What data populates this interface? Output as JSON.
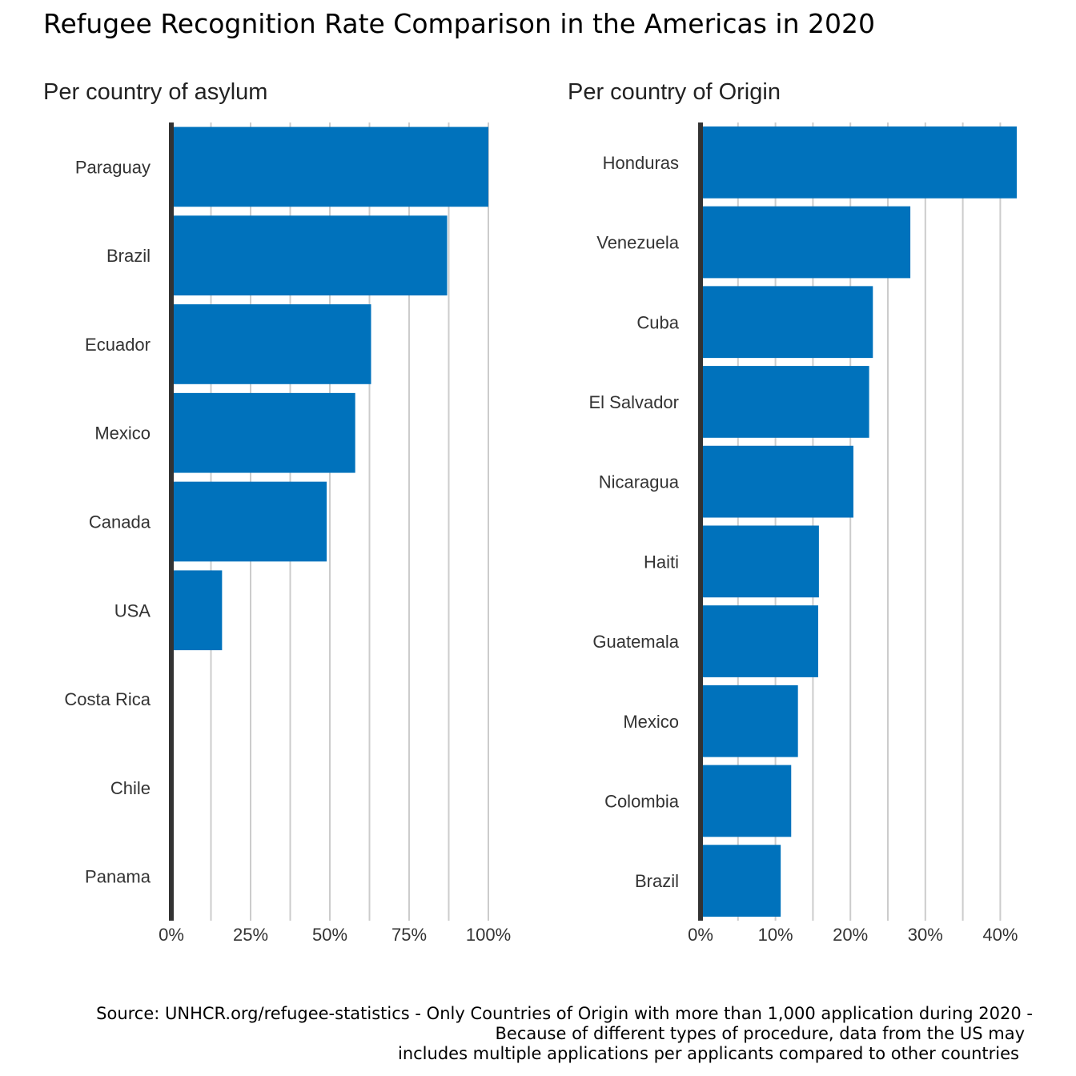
{
  "title": "Refugee Recognition Rate Comparison in the Americas in 2020",
  "caption": [
    "Source: UNHCR.org/refugee-statistics - Only Countries of Origin with more than 1,000 application during 2020 -",
    "Because of different types of procedure, data from the US may",
    "includes multiple applications per applicants compared to other countries"
  ],
  "colors": {
    "bar": "#0072BC",
    "axis": "#333333",
    "grid": "#cccccc"
  },
  "chart_data": [
    {
      "type": "bar",
      "orientation": "horizontal",
      "subtitle": "Per country of asylum",
      "categories": [
        "Paraguay",
        "Brazil",
        "Ecuador",
        "Mexico",
        "Canada",
        "USA",
        "Costa Rica",
        "Chile",
        "Panama"
      ],
      "values": [
        100,
        87,
        63,
        58,
        49,
        16,
        0.5,
        0,
        0
      ],
      "xlim": [
        0,
        100
      ],
      "xticks": [
        0,
        25,
        50,
        75,
        100
      ],
      "xtick_labels": [
        "0%",
        "25%",
        "50%",
        "75%",
        "100%"
      ],
      "unit": "%",
      "grid": true
    },
    {
      "type": "bar",
      "orientation": "horizontal",
      "subtitle": "Per country of Origin",
      "categories": [
        "Honduras",
        "Venezuela",
        "Cuba",
        "El Salvador",
        "Nicaragua",
        "Haiti",
        "Guatemala",
        "Mexico",
        "Colombia",
        "Brazil"
      ],
      "values": [
        42.2,
        28,
        23,
        22.5,
        20.4,
        15.8,
        15.7,
        13,
        12.1,
        10.7
      ],
      "xlim": [
        0,
        42.2
      ],
      "xticks": [
        0,
        10,
        20,
        30,
        40
      ],
      "xtick_labels": [
        "0%",
        "10%",
        "20%",
        "30%",
        "40%"
      ],
      "unit": "%",
      "grid": true
    }
  ]
}
